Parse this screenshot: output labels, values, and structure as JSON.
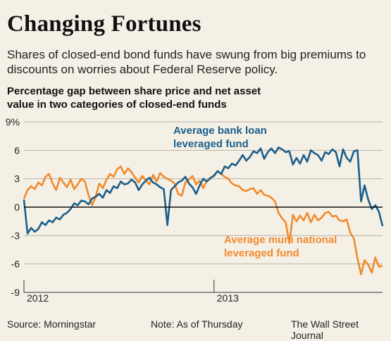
{
  "header": {
    "title": "Changing Fortunes",
    "subtitle": "Shares of closed-end bond funds have swung from big premiums to discounts on worries about Federal Reserve policy.",
    "chart_label": "Percentage gap between share price and net asset value in two categories of closed-end funds"
  },
  "footer": {
    "source": "Source: Morningstar",
    "note": "Note: As of Thursday",
    "credit": "The Wall Street Journal"
  },
  "colors": {
    "bank_loan": "#1b5f8c",
    "muni": "#f08a2e",
    "grid": "#b9b2a6",
    "zero": "#111111",
    "background": "#f5f0e6"
  },
  "chart_data": {
    "type": "line",
    "ylim": [
      -9,
      9
    ],
    "yticks": [
      {
        "v": 9,
        "label": "9%"
      },
      {
        "v": 6,
        "label": "6"
      },
      {
        "v": 3,
        "label": "3"
      },
      {
        "v": 0,
        "label": "0"
      },
      {
        "v": -3,
        "label": "-3"
      },
      {
        "v": -6,
        "label": "-6"
      },
      {
        "v": -9,
        "label": "-9"
      }
    ],
    "xlim": [
      0,
      100
    ],
    "xticks": [
      {
        "v": 0,
        "label": "2012"
      },
      {
        "v": 53,
        "label": "2013"
      }
    ],
    "annotations": {
      "bank_loan": [
        "Average bank loan",
        "leveraged fund"
      ],
      "muni": [
        "Average muni national",
        "leveraged fund"
      ]
    },
    "series": [
      {
        "key": "muni",
        "x": [
          0,
          1,
          2,
          3,
          4,
          5,
          6,
          7,
          8,
          9,
          10,
          11,
          12,
          13,
          14,
          15,
          16,
          17,
          18,
          19,
          20,
          21,
          22,
          23,
          24,
          25,
          26,
          27,
          28,
          29,
          30,
          31,
          32,
          33,
          34,
          35,
          36,
          37,
          38,
          39,
          40,
          41,
          42,
          43,
          44,
          45,
          46,
          47,
          48,
          49,
          50,
          51,
          52,
          53,
          54,
          55,
          56,
          57,
          58,
          59,
          60,
          61,
          62,
          63,
          64,
          65,
          66,
          67,
          68,
          69,
          70,
          71,
          72,
          73,
          74,
          75,
          76,
          77,
          78,
          79,
          80,
          81,
          82,
          83,
          84,
          85,
          86,
          87,
          88,
          89,
          90,
          91,
          92,
          93,
          94,
          95,
          96,
          97,
          98,
          99,
          100
        ],
        "values": [
          0.9,
          1.8,
          2.2,
          1.9,
          2.6,
          2.3,
          3.2,
          3.5,
          2.5,
          1.8,
          3.1,
          2.6,
          2.1,
          2.9,
          1.9,
          2.4,
          3.0,
          2.7,
          1.3,
          0.2,
          1.1,
          2.5,
          2.0,
          2.9,
          3.5,
          3.2,
          4.0,
          4.3,
          3.5,
          4.1,
          3.7,
          3.1,
          2.6,
          3.3,
          2.8,
          2.4,
          3.4,
          2.7,
          3.6,
          3.2,
          3.0,
          2.8,
          2.5,
          1.4,
          1.2,
          2.6,
          2.9,
          3.3,
          2.4,
          2.8,
          2.0,
          2.8,
          3.0,
          3.4,
          3.8,
          3.5,
          3.2,
          3.0,
          2.5,
          2.3,
          2.2,
          1.8,
          1.7,
          1.9,
          2.0,
          1.4,
          1.8,
          1.3,
          1.2,
          1.0,
          0.6,
          -0.6,
          -1.2,
          -1.6,
          -3.8,
          -0.8,
          -1.5,
          -0.9,
          -1.4,
          -0.6,
          -1.6,
          -0.8,
          -1.4,
          -1.1,
          -0.6,
          -0.5,
          -1.0,
          -0.9,
          -1.4,
          -1.5,
          -1.3,
          -2.7,
          -3.3,
          -5.4,
          -7.1,
          -5.6,
          -6.1,
          -6.9,
          -5.3,
          -6.3,
          -6.2
        ]
      },
      {
        "key": "bank_loan",
        "x": [
          0,
          1,
          2,
          3,
          4,
          5,
          6,
          7,
          8,
          9,
          10,
          11,
          12,
          13,
          14,
          15,
          16,
          17,
          18,
          19,
          20,
          21,
          22,
          23,
          24,
          25,
          26,
          27,
          28,
          29,
          30,
          31,
          32,
          33,
          34,
          35,
          36,
          37,
          38,
          39,
          40,
          41,
          42,
          43,
          44,
          45,
          46,
          47,
          48,
          49,
          50,
          51,
          52,
          53,
          54,
          55,
          56,
          57,
          58,
          59,
          60,
          61,
          62,
          63,
          64,
          65,
          66,
          67,
          68,
          69,
          70,
          71,
          72,
          73,
          74,
          75,
          76,
          77,
          78,
          79,
          80,
          81,
          82,
          83,
          84,
          85,
          86,
          87,
          88,
          89,
          90,
          91,
          92,
          93,
          94,
          95,
          96,
          97,
          98,
          99,
          100
        ],
        "values": [
          0.8,
          -2.8,
          -2.2,
          -2.6,
          -2.3,
          -1.6,
          -1.9,
          -1.4,
          -1.6,
          -1.1,
          -1.3,
          -0.8,
          -0.6,
          -0.2,
          0.4,
          0.2,
          0.7,
          0.6,
          0.3,
          0.9,
          1.1,
          1.4,
          1.0,
          1.8,
          1.5,
          2.2,
          2.0,
          2.7,
          2.4,
          2.5,
          2.9,
          2.6,
          1.8,
          2.4,
          2.8,
          3.1,
          2.6,
          2.4,
          2.1,
          1.9,
          -1.9,
          1.8,
          2.2,
          2.6,
          2.8,
          3.2,
          2.5,
          2.1,
          1.4,
          2.3,
          3.0,
          2.7,
          3.1,
          3.3,
          3.8,
          3.5,
          4.3,
          4.1,
          4.6,
          4.4,
          4.9,
          5.5,
          4.9,
          5.3,
          5.9,
          5.7,
          6.2,
          5.1,
          5.8,
          6.2,
          5.7,
          6.3,
          6.1,
          5.8,
          5.9,
          4.5,
          5.2,
          4.6,
          5.5,
          4.8,
          6.0,
          5.7,
          5.5,
          4.9,
          5.8,
          5.6,
          6.1,
          5.8,
          4.3,
          6.1,
          5.2,
          4.8,
          5.9,
          6.0,
          0.6,
          2.3,
          0.8,
          -0.2,
          0.2,
          -0.5,
          -2.0
        ]
      }
    ]
  }
}
